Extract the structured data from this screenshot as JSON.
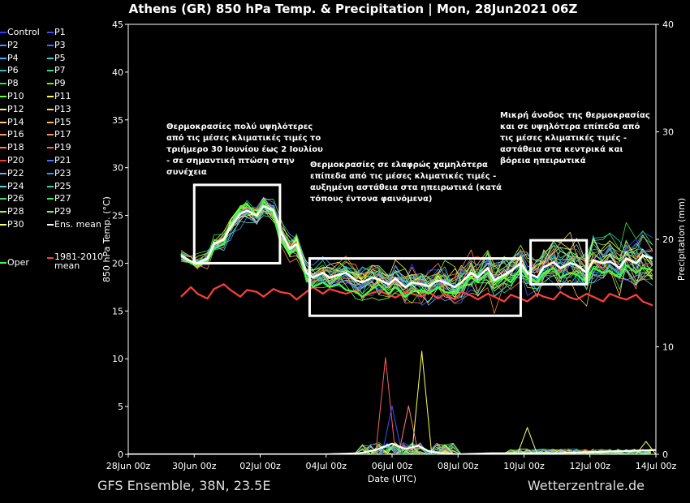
{
  "header": {
    "title": "Athens  (GR)  850 hPa Temp. & Precipitation | Mon, 28Jun2021 06Z"
  },
  "footer": {
    "left": "GFS Ensemble, 38N, 23.5E",
    "right": "Wetterzentrale.de"
  },
  "legend": {
    "items": [
      {
        "label": "Control",
        "color": "#2f3fff"
      },
      {
        "label": "P1",
        "color": "#3f4fff"
      },
      {
        "label": "P2",
        "color": "#4f8fff"
      },
      {
        "label": "P3",
        "color": "#3f6fff"
      },
      {
        "label": "P4",
        "color": "#3fafff"
      },
      {
        "label": "P5",
        "color": "#2fcfcf"
      },
      {
        "label": "P6",
        "color": "#2fbfbf"
      },
      {
        "label": "P7",
        "color": "#2fdf8f"
      },
      {
        "label": "P8",
        "color": "#2fdf4f"
      },
      {
        "label": "P9",
        "color": "#4fff2f"
      },
      {
        "label": "P10",
        "color": "#6fff2f"
      },
      {
        "label": "P11",
        "color": "#ffff4f"
      },
      {
        "label": "P12",
        "color": "#ffef6f"
      },
      {
        "label": "P13",
        "color": "#ffdf4f"
      },
      {
        "label": "P14",
        "color": "#ffcf6f"
      },
      {
        "label": "P15",
        "color": "#ffbf3f"
      },
      {
        "label": "P16",
        "color": "#ff9f5f"
      },
      {
        "label": "P17",
        "color": "#ff8f4f"
      },
      {
        "label": "P18",
        "color": "#ff7f3f"
      },
      {
        "label": "P19",
        "color": "#ff5f3f"
      },
      {
        "label": "P20",
        "color": "#ef3f2f"
      },
      {
        "label": "P21",
        "color": "#4f6fff"
      },
      {
        "label": "P22",
        "color": "#5fafff"
      },
      {
        "label": "P23",
        "color": "#3f8fff"
      },
      {
        "label": "P24",
        "color": "#4fdfdf"
      },
      {
        "label": "P25",
        "color": "#3fcfaf"
      },
      {
        "label": "P26",
        "color": "#3fdf6f"
      },
      {
        "label": "P27",
        "color": "#2fef4f"
      },
      {
        "label": "P28",
        "color": "#9fff3f"
      },
      {
        "label": "P29",
        "color": "#6fff4f"
      },
      {
        "label": "P30",
        "color": "#ffff6f"
      },
      {
        "label": "Ens. mean",
        "color": "#ffffff"
      },
      {
        "label": "Oper",
        "color": "#3fff3f"
      },
      {
        "label": "1981-2010 mean",
        "color": "#ff3f3f"
      }
    ]
  },
  "annotations": [
    {
      "lines": [
        "Θερμοκρασίες πολύ υψηλότερες",
        "από τις μέσες κλιματικές τιμές το",
        "τριήμερο 30 Ιουνίου έως 2 Ιουλίου",
        "- σε σημαντική πτώση στην",
        "συνέχεια"
      ]
    },
    {
      "lines": [
        "Θερμοκρασίες σε ελαφρώς χαμηλότερα",
        "επίπεδα από τις μέσες κλιματικές τιμές -",
        "αυξημένη αστάθεια στα ηπειρωτικά (κατά",
        "τόπους έντονα φαινόμενα)"
      ]
    },
    {
      "lines": [
        "Μικρή άνοδος της θερμοκρασίας",
        "και σε υψηλότερα επίπεδα από",
        "τις μέσες κλιματικές τιμές -",
        "αστάθεια στα κεντρικά και",
        "βόρεια ηπειρωτικά"
      ]
    }
  ],
  "chart_data": {
    "type": "line",
    "x_axis": {
      "label": "Date (UTC)",
      "range_days": [
        0,
        16
      ],
      "ticks": [
        "28Jun 00z",
        "30Jun 00z",
        "02Jul 00z",
        "04Jul 00z",
        "06Jul 00z",
        "08Jul 00z",
        "10Jul 00z",
        "12Jul 00z",
        "14Jul 00z"
      ]
    },
    "y_left": {
      "label": "850 hPa Temp. (°C)",
      "ylim": [
        0,
        45
      ],
      "ticks": [
        "0",
        "5",
        "10",
        "15",
        "20",
        "25",
        "30",
        "35",
        "40",
        "45"
      ]
    },
    "y_right": {
      "label": "Precipitation (mm)",
      "ylim": [
        0,
        40
      ],
      "ticks": [
        "0",
        "10",
        "20",
        "30",
        "40"
      ]
    },
    "ens_mean": {
      "days": [
        1.6,
        1.9,
        2.1,
        2.4,
        2.6,
        2.9,
        3.1,
        3.4,
        3.6,
        3.9,
        4.1,
        4.4,
        4.6,
        4.9,
        5.1,
        5.4,
        5.6,
        5.9,
        6.1,
        6.4,
        6.6,
        6.9,
        7.1,
        7.4,
        7.6,
        7.9,
        8.1,
        8.4,
        8.6,
        8.9,
        9.1,
        9.4,
        9.6,
        9.9,
        10.1,
        10.4,
        10.6,
        10.9,
        11.1,
        11.4,
        11.6,
        11.9,
        12.1,
        12.4,
        12.6,
        12.9,
        13.1,
        13.4,
        13.6,
        13.9,
        14.1,
        14.4,
        14.6,
        14.9,
        15.1,
        15.4,
        15.6,
        15.9
      ],
      "temp": [
        20.8,
        20.2,
        20.0,
        20.5,
        22.0,
        22.5,
        23.8,
        25.2,
        25.5,
        25.0,
        26.0,
        25.5,
        23.5,
        21.5,
        22.0,
        19.0,
        18.5,
        19.0,
        18.5,
        18.8,
        19.0,
        18.2,
        18.0,
        18.5,
        18.3,
        17.8,
        18.4,
        17.5,
        18.0,
        17.8,
        17.6,
        18.2,
        18.0,
        17.5,
        18.0,
        19.0,
        18.5,
        19.5,
        18.2,
        18.8,
        19.2,
        20.0,
        19.0,
        18.5,
        19.6,
        20.1,
        19.5,
        20.0,
        19.8,
        19.0,
        20.3,
        20.0,
        20.2,
        19.5,
        20.5,
        20.0,
        20.8,
        20.5
      ]
    },
    "climate_mean": {
      "days": [
        1.6,
        1.9,
        2.1,
        2.4,
        2.6,
        2.9,
        3.1,
        3.4,
        3.6,
        3.9,
        4.1,
        4.4,
        4.6,
        4.9,
        5.1,
        5.4,
        5.6,
        5.9,
        6.1,
        6.4,
        6.6,
        6.9,
        7.1,
        7.4,
        7.6,
        7.9,
        8.1,
        8.4,
        8.6,
        8.9,
        9.1,
        9.4,
        9.6,
        9.9,
        10.1,
        10.4,
        10.6,
        10.9,
        11.1,
        11.4,
        11.6,
        11.9,
        12.1,
        12.4,
        12.6,
        12.9,
        13.1,
        13.4,
        13.6,
        13.9,
        14.1,
        14.4,
        14.6,
        14.9,
        15.1,
        15.4,
        15.6,
        15.9
      ],
      "temp": [
        16.5,
        17.5,
        16.8,
        16.3,
        17.3,
        17.8,
        17.2,
        16.5,
        17.2,
        17.0,
        16.5,
        17.3,
        17.0,
        16.8,
        16.2,
        17.0,
        17.5,
        16.8,
        17.3,
        17.0,
        16.8,
        17.2,
        16.5,
        16.9,
        17.1,
        16.7,
        16.4,
        17.0,
        16.8,
        16.5,
        17.0,
        16.3,
        16.8,
        16.2,
        17.0,
        16.6,
        16.2,
        16.8,
        16.5,
        16.0,
        16.7,
        16.3,
        16.0,
        16.8,
        16.5,
        16.2,
        17.0,
        16.4,
        16.2,
        16.8,
        16.5,
        16.0,
        16.8,
        16.4,
        16.2,
        16.7,
        16.0,
        15.6
      ]
    },
    "oper": {
      "days": [
        1.6,
        1.9,
        2.1,
        2.4,
        2.6,
        2.9,
        3.1,
        3.4,
        3.6,
        3.9,
        4.1,
        4.4,
        4.6,
        4.9,
        5.1,
        5.4,
        5.6,
        5.9,
        6.1,
        6.4,
        6.6,
        6.9,
        7.1,
        7.4,
        7.6,
        7.9,
        8.1,
        8.4,
        8.6,
        8.9,
        9.1,
        9.4,
        9.6,
        9.9,
        10.1,
        10.4,
        10.6,
        10.9,
        11.1,
        11.4,
        11.6,
        11.9,
        12.1,
        12.4,
        12.6,
        12.9,
        13.1,
        13.4,
        13.6,
        13.9,
        14.1,
        14.4,
        14.6,
        14.9,
        15.1,
        15.4,
        15.6,
        15.9
      ],
      "temp": [
        21.0,
        20.0,
        19.8,
        20.2,
        21.5,
        22.0,
        24.0,
        25.8,
        26.2,
        25.0,
        26.5,
        25.0,
        22.5,
        21.0,
        21.5,
        18.5,
        17.5,
        18.0,
        17.5,
        17.8,
        17.2,
        17.0,
        16.5,
        17.3,
        17.8,
        16.8,
        17.5,
        16.5,
        17.0,
        17.2,
        16.8,
        17.5,
        17.0,
        16.8,
        17.5,
        18.5,
        18.0,
        19.0,
        18.0,
        18.5,
        18.0,
        19.5,
        18.5,
        18.0,
        19.0,
        19.5,
        18.5,
        19.0,
        18.8,
        18.0,
        19.5,
        19.0,
        19.2,
        18.5,
        19.8,
        19.0,
        19.5,
        19.3
      ]
    },
    "boxes": [
      {
        "x_days": [
          2.0,
          4.6
        ],
        "temp": [
          20.0,
          28.2
        ]
      },
      {
        "x_days": [
          5.5,
          11.9
        ],
        "temp": [
          14.5,
          20.5
        ]
      },
      {
        "x_days": [
          12.2,
          13.9
        ],
        "temp": [
          17.8,
          22.4
        ]
      }
    ],
    "precip": {
      "ens_mean_days": [
        0.0,
        1.0,
        2.0,
        3.0,
        4.0,
        5.0,
        6.0,
        7.0,
        7.5,
        8.0,
        8.4,
        8.8,
        9.1,
        9.5,
        10.0,
        11.0,
        12.0,
        13.0,
        14.0,
        15.0,
        16.0
      ],
      "ens_mean_mm": [
        0.0,
        0.0,
        0.0,
        0.0,
        0.0,
        0.0,
        0.0,
        0.1,
        0.4,
        1.0,
        0.5,
        0.8,
        0.3,
        0.1,
        0.0,
        0.1,
        0.1,
        0.1,
        0.2,
        0.3,
        0.4
      ],
      "max_peaks": [
        {
          "day": 7.8,
          "mm": 9.0
        },
        {
          "day": 8.0,
          "mm": 4.5
        },
        {
          "day": 8.5,
          "mm": 4.5
        },
        {
          "day": 8.9,
          "mm": 9.6
        },
        {
          "day": 12.1,
          "mm": 2.5
        },
        {
          "day": 15.7,
          "mm": 1.2
        }
      ]
    }
  }
}
